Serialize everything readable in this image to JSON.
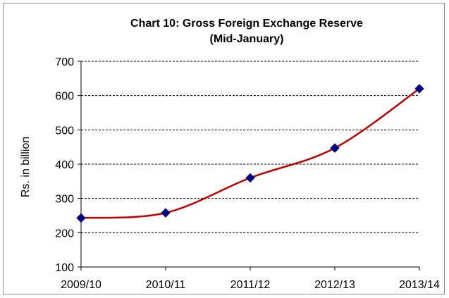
{
  "chart_data": {
    "type": "line",
    "title": "Chart 10: Gross Foreign Exchange Reserve",
    "subtitle": "(Mid-January)",
    "xlabel": "",
    "ylabel": "Rs. in billion",
    "ylim": [
      100,
      700
    ],
    "yticks": [
      100,
      200,
      300,
      400,
      500,
      600,
      700
    ],
    "y_tick_labels": [
      "100",
      "200",
      "300",
      "400",
      "500",
      "600",
      "700"
    ],
    "categories": [
      "2009/10",
      "2010/11",
      "2011/12",
      "2012/13",
      "2013/14"
    ],
    "values": [
      243,
      258,
      360,
      447,
      620
    ],
    "grid": true,
    "legend": "none",
    "line_color": "#c00000",
    "marker_color": "#000080",
    "marker": "diamond",
    "smooth": true
  }
}
